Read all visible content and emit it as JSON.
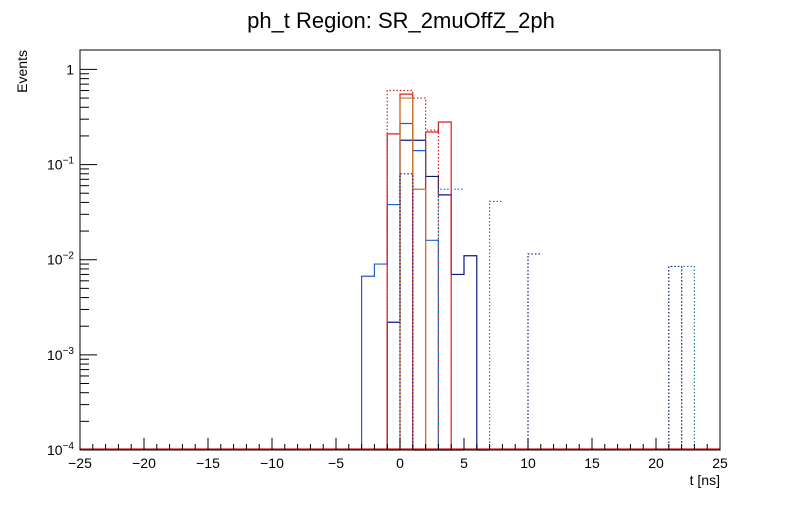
{
  "chart_data": {
    "type": "line",
    "title": "ph_t Region: SR_2muOffZ_2ph",
    "xlabel": "t [ns]",
    "ylabel": "Events",
    "xlim": [
      -25,
      25
    ],
    "ylim": [
      0.0001,
      1.6
    ],
    "yscale": "log",
    "bin_width": 1,
    "x_major_ticks": [
      -25,
      -20,
      -15,
      -10,
      -5,
      0,
      5,
      10,
      15,
      20,
      25
    ],
    "x_tick_labels": [
      "−25",
      "−20",
      "−15",
      "−10",
      "−5",
      "0",
      "5",
      "10",
      "15",
      "20",
      "25"
    ],
    "y_major_ticks": [
      {
        "value": 0.0001,
        "base": "10",
        "exp": "−4"
      },
      {
        "value": 0.001,
        "base": "10",
        "exp": "−3"
      },
      {
        "value": 0.01,
        "base": "10",
        "exp": "−2"
      },
      {
        "value": 0.1,
        "base": "10",
        "exp": "−1"
      },
      {
        "value": 1,
        "base": "1",
        "exp": ""
      }
    ],
    "series": [
      {
        "name": "solid-blue",
        "color": "#1f5fd6",
        "style": "solid",
        "bins": [
          [
            -3,
            0.0067
          ],
          [
            -2,
            0.009
          ],
          [
            -1,
            0.038
          ],
          [
            0,
            0.27
          ],
          [
            1,
            0.14
          ],
          [
            2,
            0.016
          ],
          [
            3,
            0.0001
          ]
        ]
      },
      {
        "name": "solid-navy",
        "color": "#0a1a7a",
        "style": "solid",
        "bins": [
          [
            -1,
            0.0022
          ],
          [
            0,
            0.18
          ],
          [
            1,
            0.18
          ],
          [
            2,
            0.075
          ],
          [
            3,
            0.048
          ],
          [
            4,
            0.007
          ],
          [
            5,
            0.011
          ],
          [
            6,
            0.0001
          ]
        ]
      },
      {
        "name": "solid-red",
        "color": "#d42020",
        "style": "solid",
        "bins": [
          [
            -1,
            0.21
          ],
          [
            0,
            0.55
          ],
          [
            1,
            0.0001
          ],
          [
            2,
            0.22
          ],
          [
            3,
            0.28
          ],
          [
            4,
            0.0001
          ]
        ]
      },
      {
        "name": "solid-orange",
        "color": "#d2731d",
        "style": "solid",
        "bins": [
          [
            -1,
            0.0001
          ],
          [
            0,
            0.5
          ],
          [
            1,
            0.055
          ],
          [
            2,
            0.0001
          ]
        ]
      },
      {
        "name": "dotted-red",
        "color": "#d42020",
        "style": "dotted",
        "bins": [
          [
            -2,
            0.0001
          ],
          [
            -1,
            0.6
          ],
          [
            0,
            0.6
          ],
          [
            1,
            0.5
          ],
          [
            2,
            0.23
          ],
          [
            3,
            0.0001
          ]
        ]
      },
      {
        "name": "dotted-navy",
        "color": "#0a1a7a",
        "style": "dotted",
        "bins": [
          [
            0,
            0.08
          ],
          [
            1,
            0.0001
          ],
          [
            2,
            0.0001
          ],
          [
            10,
            0.0115
          ],
          [
            21,
            0.0085
          ]
        ]
      },
      {
        "name": "dotted-teal",
        "color": "#1f7fa6",
        "style": "dotted",
        "bins": [
          [
            3,
            0.055
          ],
          [
            4,
            0.055
          ],
          [
            7,
            0.041
          ],
          [
            22,
            0.0085
          ]
        ]
      }
    ]
  }
}
